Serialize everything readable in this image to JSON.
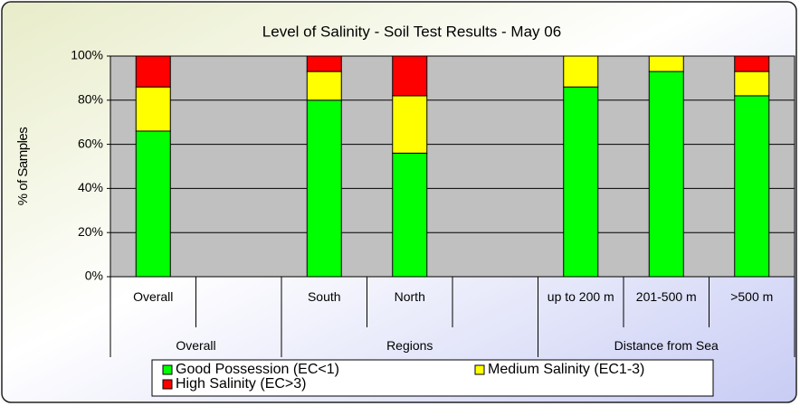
{
  "chart_data": {
    "type": "stacked_bar",
    "title": "Level of Salinity - Soil Test Results - May 06",
    "y_label": "% of Samples",
    "categories": [
      "Overall",
      null,
      "South",
      "North",
      null,
      "up to 200 m",
      "201-500 m",
      ">500 m"
    ],
    "category_groups": [
      "Overall",
      "Regions",
      "Distance from Sea"
    ],
    "series": [
      {
        "name": "Good Possession (EC<1)",
        "color": "#00ff00",
        "values": [
          66,
          null,
          80,
          56,
          null,
          86,
          93,
          82
        ]
      },
      {
        "name": "Medium Salinity (EC1-3)",
        "color": "#ffff00",
        "values": [
          20,
          null,
          13,
          26,
          null,
          14,
          7,
          11
        ]
      },
      {
        "name": "High Salinity (EC>3)",
        "color": "#ff0000",
        "values": [
          14,
          null,
          7,
          18,
          null,
          0,
          0,
          7
        ]
      }
    ],
    "ylim": [
      0,
      100
    ],
    "yticks": [
      {
        "value": 0,
        "label": "0%"
      },
      {
        "value": 20,
        "label": "20%"
      },
      {
        "value": 40,
        "label": "40%"
      },
      {
        "value": 60,
        "label": "60%"
      },
      {
        "value": 80,
        "label": "80%"
      },
      {
        "value": 100,
        "label": "100%"
      }
    ],
    "grid": true
  }
}
